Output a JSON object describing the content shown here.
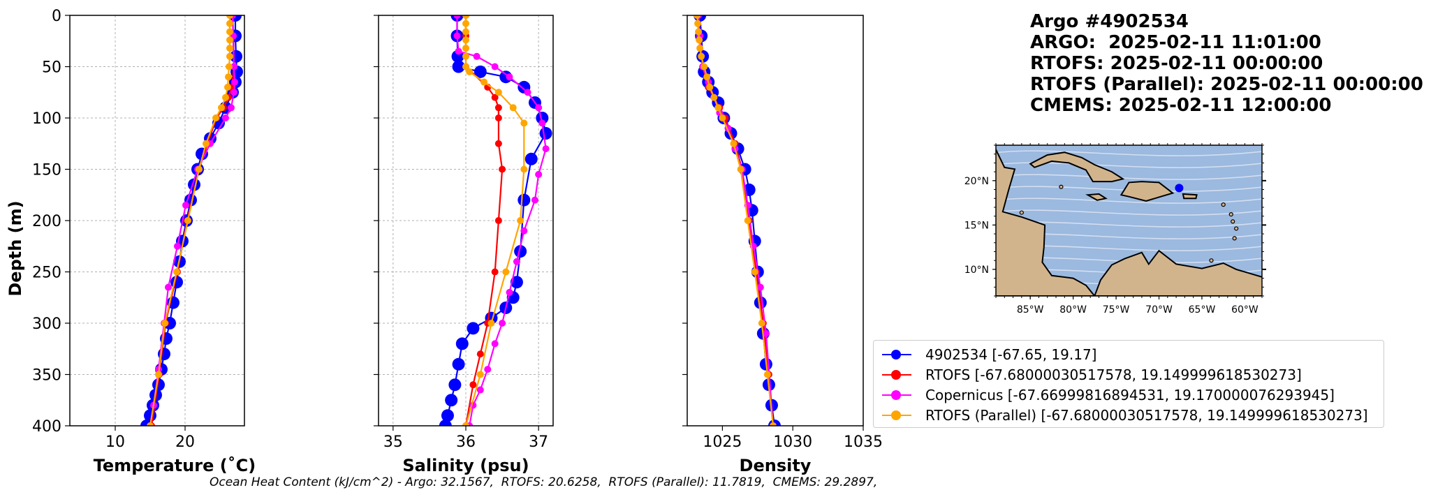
{
  "title": {
    "argo": "Argo #4902534",
    "argo_time": "ARGO:  2025-02-11 11:01:00",
    "rtofs_time": "RTOFS: 2025-02-11 00:00:00",
    "rtofs_parallel_time": "RTOFS (Parallel): 2025-02-11 00:00:00",
    "cmems_time": "CMEMS: 2025-02-11 12:00:00"
  },
  "footer": "Ocean Heat Content (kJ/cm^2) - Argo: 32.1567,  RTOFS: 20.6258,  RTOFS (Parallel): 11.7819,  CMEMS: 29.2897,",
  "legend": [
    {
      "label": "4902534 [-67.65, 19.17]",
      "color": "#0000ff"
    },
    {
      "label": "RTOFS [-67.68000030517578, 19.149999618530273]",
      "color": "#ff0000"
    },
    {
      "label": "Copernicus [-67.66999816894531, 19.170000076293945]",
      "color": "#ff00ff"
    },
    {
      "label": "RTOFS (Parallel) [-67.68000030517578, 19.149999618530273]",
      "color": "#ffa500"
    }
  ],
  "chart_data": [
    {
      "type": "line",
      "xlabel": "Temperature (˚C)",
      "ylabel": "Depth (m)",
      "xlim": [
        3.5,
        28.5
      ],
      "xticks": [
        10,
        20
      ],
      "ylim": [
        400,
        0
      ],
      "yticks": [
        0,
        50,
        100,
        150,
        200,
        250,
        300,
        350,
        400
      ],
      "grid": true,
      "series": [
        {
          "name": "4902534",
          "color": "#0000ff",
          "marker_size": 9,
          "x": [
            27.2,
            27.2,
            27.3,
            27.4,
            27.2,
            26.8,
            25.8,
            24.8,
            23.6,
            22.4,
            21.8,
            21.3,
            20.8,
            20.2,
            19.6,
            19.2,
            18.8,
            18.3,
            17.8,
            17.3,
            17.0,
            16.6,
            16.2,
            15.8,
            15.4,
            15.0,
            14.5,
            14.3
          ],
          "y": [
            0,
            20,
            40,
            55,
            65,
            75,
            90,
            105,
            120,
            135,
            150,
            165,
            180,
            200,
            220,
            240,
            260,
            280,
            300,
            315,
            330,
            345,
            360,
            370,
            380,
            390,
            400,
            405
          ]
        },
        {
          "name": "RTOFS",
          "color": "#ff0000",
          "marker_size": 5,
          "x": [
            26.8,
            26.9,
            27.0,
            26.7,
            26.2,
            25.5,
            24.5,
            23.2,
            22.0,
            20.3,
            18.9,
            17.2,
            16.3,
            15.2
          ],
          "y": [
            0,
            20,
            50,
            70,
            80,
            90,
            100,
            125,
            150,
            200,
            250,
            300,
            350,
            400
          ]
        },
        {
          "name": "Copernicus",
          "color": "#ff00ff",
          "marker_size": 5,
          "x": [
            26.8,
            26.9,
            27.0,
            27.1,
            27.0,
            26.6,
            25.8,
            23.6,
            21.8,
            20.1,
            18.9,
            17.6,
            17.0,
            16.2,
            15.5,
            15.0
          ],
          "y": [
            0,
            20,
            50,
            65,
            75,
            90,
            100,
            125,
            150,
            185,
            225,
            265,
            300,
            345,
            380,
            400
          ]
        },
        {
          "name": "RTOFS (Parallel)",
          "color": "#ffa500",
          "marker_size": 5,
          "x": [
            26.4,
            26.4,
            26.4,
            26.4,
            26.4,
            26.4,
            26.3,
            26.2,
            26.1,
            25.8,
            25.2,
            24.4,
            23.0,
            22.0,
            20.4,
            18.8,
            17.1,
            16.2,
            15.0
          ],
          "y": [
            0,
            8,
            16,
            24,
            32,
            40,
            50,
            60,
            70,
            80,
            90,
            100,
            125,
            150,
            200,
            250,
            300,
            350,
            400
          ]
        }
      ]
    },
    {
      "type": "line",
      "xlabel": "Salinity (psu)",
      "ylabel": "",
      "xlim": [
        34.8,
        37.2
      ],
      "xticks": [
        35,
        36,
        37
      ],
      "ylim": [
        400,
        0
      ],
      "grid": true,
      "series": [
        {
          "name": "4902534",
          "color": "#0000ff",
          "marker_size": 9,
          "x": [
            35.88,
            35.88,
            35.89,
            35.9,
            36.2,
            36.55,
            36.8,
            36.95,
            37.05,
            37.1,
            36.9,
            36.8,
            36.75,
            36.7,
            36.65,
            36.55,
            36.35,
            36.1,
            35.95,
            35.9,
            35.85,
            35.8,
            35.75,
            35.72
          ],
          "y": [
            0,
            20,
            40,
            50,
            55,
            60,
            70,
            85,
            100,
            115,
            140,
            180,
            230,
            260,
            275,
            285,
            295,
            305,
            320,
            340,
            360,
            375,
            390,
            400
          ]
        },
        {
          "name": "RTOFS",
          "color": "#ff0000",
          "marker_size": 5,
          "x": [
            36.0,
            36.0,
            36.0,
            36.3,
            36.4,
            36.45,
            36.45,
            36.45,
            36.5,
            36.45,
            36.4,
            36.3,
            36.2,
            36.1,
            36.0
          ],
          "y": [
            0,
            20,
            50,
            70,
            80,
            90,
            100,
            125,
            150,
            200,
            250,
            300,
            330,
            360,
            400
          ]
        },
        {
          "name": "Copernicus",
          "color": "#ff00ff",
          "marker_size": 5,
          "x": [
            35.88,
            35.88,
            35.9,
            36.15,
            36.4,
            36.6,
            36.85,
            37.0,
            37.05,
            37.1,
            37.0,
            36.95,
            36.8,
            36.7,
            36.6,
            36.5,
            36.4,
            36.3,
            36.2,
            36.1,
            36.05
          ],
          "y": [
            0,
            20,
            35,
            40,
            50,
            60,
            75,
            90,
            105,
            130,
            155,
            180,
            210,
            240,
            270,
            300,
            320,
            345,
            365,
            380,
            400
          ]
        },
        {
          "name": "RTOFS (Parallel)",
          "color": "#ffa500",
          "marker_size": 5,
          "x": [
            36.0,
            36.0,
            36.0,
            36.0,
            36.0,
            36.0,
            36.0,
            36.05,
            36.25,
            36.45,
            36.65,
            36.8,
            36.8,
            36.75,
            36.55,
            36.35,
            36.2,
            36.0
          ],
          "y": [
            0,
            8,
            16,
            24,
            32,
            40,
            50,
            55,
            65,
            75,
            90,
            105,
            150,
            200,
            250,
            300,
            350,
            400
          ]
        }
      ]
    },
    {
      "type": "line",
      "xlabel": "Density",
      "ylabel": "",
      "xlim": [
        1022.5,
        1035
      ],
      "xticks": [
        1025,
        1030,
        1035
      ],
      "ylim": [
        400,
        0
      ],
      "grid": false,
      "series": [
        {
          "name": "4902534",
          "color": "#0000ff",
          "marker_size": 9,
          "x": [
            1023.4,
            1023.5,
            1023.6,
            1023.7,
            1024.0,
            1024.3,
            1024.7,
            1025.1,
            1025.6,
            1026.1,
            1026.6,
            1026.9,
            1027.1,
            1027.3,
            1027.5,
            1027.7,
            1027.9,
            1028.1,
            1028.3,
            1028.5,
            1028.7
          ],
          "y": [
            0,
            20,
            40,
            55,
            65,
            75,
            85,
            100,
            115,
            130,
            150,
            170,
            190,
            220,
            250,
            280,
            310,
            340,
            360,
            380,
            400
          ]
        },
        {
          "name": "RTOFS",
          "color": "#ff0000",
          "marker_size": 5,
          "x": [
            1023.3,
            1023.4,
            1023.6,
            1024.0,
            1024.4,
            1024.8,
            1025.2,
            1025.9,
            1026.4,
            1026.9,
            1027.4,
            1027.9,
            1028.3,
            1028.6
          ],
          "y": [
            0,
            20,
            50,
            70,
            80,
            90,
            100,
            125,
            150,
            200,
            250,
            300,
            350,
            400
          ]
        },
        {
          "name": "Copernicus",
          "color": "#ff00ff",
          "marker_size": 5,
          "x": [
            1023.3,
            1023.4,
            1023.6,
            1024.0,
            1024.4,
            1024.8,
            1025.4,
            1025.9,
            1026.4,
            1026.8,
            1027.2,
            1027.7,
            1028.1,
            1028.6
          ],
          "y": [
            0,
            20,
            50,
            65,
            80,
            95,
            110,
            130,
            150,
            185,
            225,
            265,
            310,
            400
          ]
        },
        {
          "name": "RTOFS (Parallel)",
          "color": "#ffa500",
          "marker_size": 5,
          "x": [
            1023.2,
            1023.25,
            1023.3,
            1023.35,
            1023.4,
            1023.5,
            1023.7,
            1023.9,
            1024.1,
            1024.4,
            1024.7,
            1025.0,
            1025.8,
            1026.3,
            1026.8,
            1027.3,
            1027.8,
            1028.2,
            1028.6
          ],
          "y": [
            0,
            8,
            16,
            24,
            32,
            40,
            50,
            60,
            70,
            80,
            90,
            100,
            125,
            150,
            200,
            250,
            300,
            350,
            400
          ]
        }
      ]
    },
    {
      "type": "map",
      "lon_range": [
        -89,
        -58
      ],
      "lat_range": [
        7,
        24
      ],
      "xticks": [
        "85°W",
        "80°W",
        "75°W",
        "70°W",
        "65°W",
        "60°W"
      ],
      "yticks": [
        "10°N",
        "15°N",
        "20°N"
      ],
      "float_position": {
        "lon": -67.65,
        "lat": 19.17,
        "color": "#0000ff"
      },
      "ocean_color": "#9cb9df",
      "land_color": "#d2b48c"
    }
  ]
}
